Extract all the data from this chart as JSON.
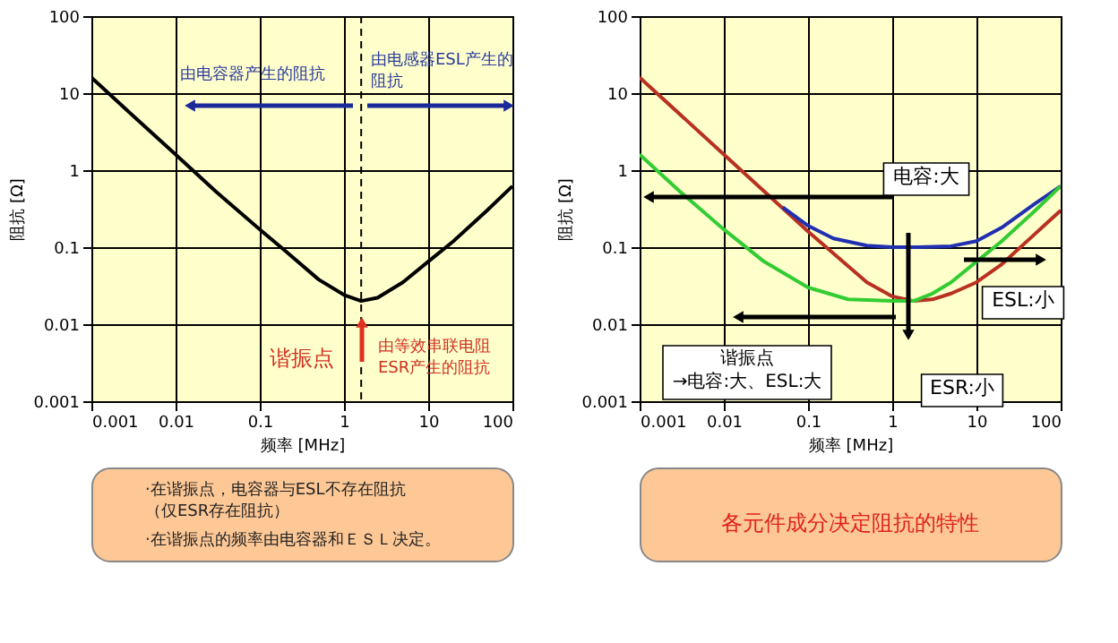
{
  "chart_data": [
    {
      "type": "line",
      "x": [
        0.001,
        0.003,
        0.01,
        0.03,
        0.1,
        0.2,
        0.5,
        1,
        1.6,
        2.5,
        5,
        10,
        20,
        50,
        100
      ],
      "series": [
        {
          "color": "#000000",
          "values": [
            16,
            5.3,
            1.6,
            0.53,
            0.17,
            0.09,
            0.038,
            0.024,
            0.02,
            0.022,
            0.035,
            0.065,
            0.12,
            0.3,
            0.62
          ]
        }
      ],
      "xlim": [
        0.001,
        100
      ],
      "ylim": [
        0.001,
        100
      ],
      "xticks": [
        0.001,
        0.01,
        0.1,
        1,
        10,
        100
      ],
      "yticks": [
        0.001,
        0.01,
        0.1,
        1,
        10,
        100
      ],
      "log": "xy",
      "grid": true,
      "xlabel": "频率 [MHz]",
      "ylabel": "阻抗 [Ω]",
      "ref_lines": [
        {
          "axis": "x",
          "value": 1.6,
          "line_style": "dashed",
          "color": "#000000"
        }
      ],
      "annotations": [
        "由电容器产生的阻抗",
        "由电感器ESL产生的阻抗",
        {
          "text": "谐振点",
          "x": 1.6,
          "y": 0.02
        },
        "由等效串联电阻ESR产生的阻抗",
        "·在谐振点，电容器与ESL不存在阻抗（仅ESR存在阻抗）",
        "·在谐振点的频率由电容器和ＥＳＬ决定。"
      ]
    },
    {
      "type": "line",
      "series": [
        {
          "color": "#b83020",
          "x": [
            0.001,
            0.01,
            0.1,
            0.5,
            1,
            1.8,
            3,
            5,
            10,
            20,
            50,
            100
          ],
          "values": [
            16,
            1.6,
            0.16,
            0.035,
            0.023,
            0.02,
            0.021,
            0.025,
            0.035,
            0.06,
            0.15,
            0.3
          ]
        },
        {
          "color": "#2030b0",
          "x": [
            0.05,
            0.1,
            0.2,
            0.5,
            1,
            2,
            5,
            10,
            20,
            50,
            100
          ],
          "values": [
            0.33,
            0.19,
            0.13,
            0.105,
            0.1,
            0.1,
            0.103,
            0.12,
            0.18,
            0.37,
            0.62
          ]
        },
        {
          "color": "#33cc33",
          "x": [
            0.001,
            0.003,
            0.01,
            0.03,
            0.1,
            0.3,
            1,
            1.8,
            3,
            5,
            10,
            20,
            50,
            100
          ],
          "values": [
            1.6,
            0.53,
            0.17,
            0.065,
            0.03,
            0.021,
            0.02,
            0.02,
            0.025,
            0.035,
            0.065,
            0.12,
            0.3,
            0.62
          ]
        }
      ],
      "xlim": [
        0.001,
        100
      ],
      "ylim": [
        0.001,
        100
      ],
      "xticks": [
        0.001,
        0.01,
        0.1,
        1,
        10,
        100
      ],
      "yticks": [
        0.001,
        0.01,
        0.1,
        1,
        10,
        100
      ],
      "log": "xy",
      "grid": true,
      "xlabel": "频率 [MHz]",
      "ylabel": "阻抗 [Ω]",
      "annotations": [
        "电容:大",
        "谐振点→电容:大、ESL:大",
        "ESR:小",
        "ESL:小",
        "各元件成分决定阻抗的特性"
      ]
    }
  ]
}
